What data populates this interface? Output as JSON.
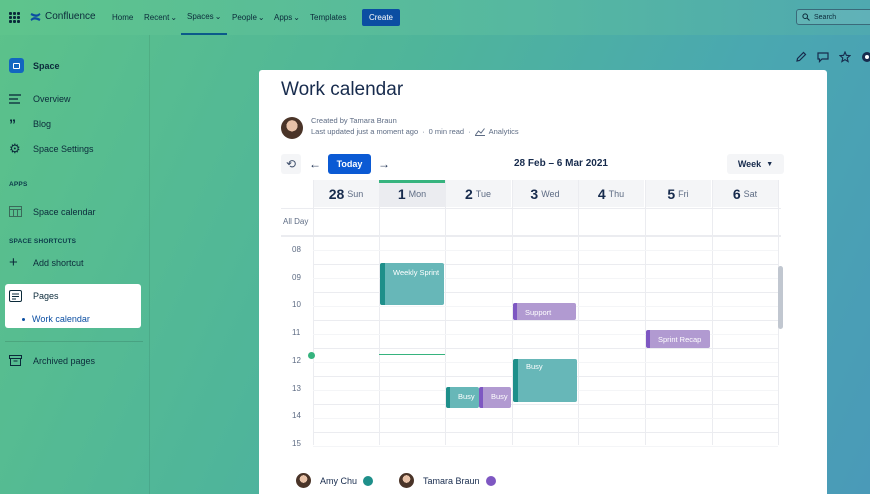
{
  "topbar": {
    "logo": "Confluence",
    "nav": [
      "Home",
      "Recent",
      "Spaces",
      "People",
      "Apps",
      "Templates"
    ],
    "create": "Create",
    "search_placeholder": "Search"
  },
  "sidebar": {
    "space": "Space",
    "items": [
      "Overview",
      "Blog",
      "Space Settings"
    ],
    "apps_header": "APPS",
    "space_calendar": "Space calendar",
    "shortcuts_header": "SPACE SHORTCUTS",
    "add_shortcut": "Add shortcut",
    "pages": "Pages",
    "work_calendar": "Work calendar",
    "archived": "Archived pages"
  },
  "page": {
    "title": "Work calendar",
    "created_by_label": "Created by",
    "created_by": "Tamara Braun",
    "updated": "Last updated just a moment ago",
    "read_time": "0 min read",
    "analytics": "Analytics"
  },
  "calendar": {
    "today": "Today",
    "range": "28 Feb – 6 Mar 2021",
    "view": "Week",
    "all_day": "All Day",
    "days": [
      {
        "num": "28",
        "name": "Sun"
      },
      {
        "num": "1",
        "name": "Mon"
      },
      {
        "num": "2",
        "name": "Tue"
      },
      {
        "num": "3",
        "name": "Wed"
      },
      {
        "num": "4",
        "name": "Thu"
      },
      {
        "num": "5",
        "name": "Fri"
      },
      {
        "num": "6",
        "name": "Sat"
      }
    ],
    "hours": [
      "08",
      "09",
      "10",
      "11",
      "12",
      "13",
      "14",
      "15"
    ],
    "events": {
      "weekly_sprint": "Weekly Sprint",
      "support": "Support",
      "sprint_recap": "Sprint Recap",
      "busy_wed": "Busy",
      "busy_tue_1": "Busy",
      "busy_tue_2": "Busy"
    },
    "colors": {
      "teal": "#67b7b8",
      "teal_dark": "#1e8f8a",
      "purple": "#b19ad1",
      "purple_dark": "#7e57c2"
    }
  },
  "participants": [
    {
      "name": "Amy Chu",
      "color": "#1e8f8a"
    },
    {
      "name": "Tamara Braun",
      "color": "#7e57c2"
    }
  ]
}
